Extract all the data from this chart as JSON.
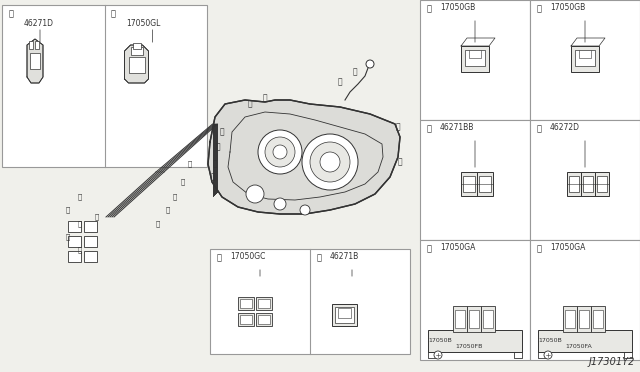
{
  "bg_color": "#f0f0eb",
  "line_color": "#333333",
  "box_border_color": "#999999",
  "title": "J17301Y2",
  "title_fontsize": 7,
  "label_fontsize": 6,
  "circle_label_fontsize": 5.5,
  "parts": {
    "j": "46271D",
    "k": "17050GL",
    "g": "17050GC",
    "h": "46271B",
    "a": "17050GB",
    "b": "17050GB",
    "c": "46271BB",
    "d": "46272D",
    "e_main": "17050GA",
    "e_sub1": "17050B",
    "e_sub2": "17050FB",
    "f_main": "17050GA",
    "f_sub1": "17050B",
    "f_sub2": "17050FA"
  }
}
